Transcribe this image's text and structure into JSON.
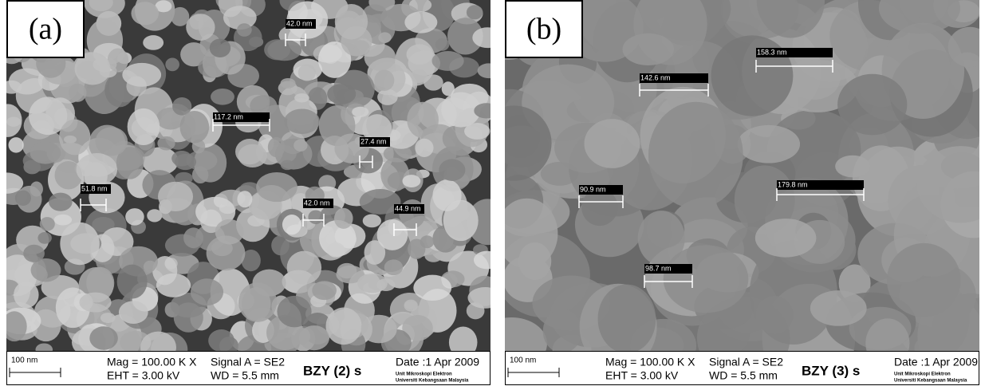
{
  "panels": [
    {
      "label": "(a)",
      "measurements": [
        "42.0 nm",
        "117.2 nm",
        "27.4 nm",
        "51.8 nm",
        "42.0 nm",
        "44.9 nm"
      ],
      "info": {
        "scale": "100 nm",
        "mag": "Mag = 100.00 K X",
        "eht": "EHT =  3.00 kV",
        "signal": "Signal A = SE2",
        "wd": "WD =  5.5 mm",
        "sample": "BZY (2) s",
        "date": "Date :1 Apr 2009",
        "unit": "Unit Mikroskopi Elektron",
        "university": "Universiti Kebangsaan Malaysia"
      }
    },
    {
      "label": "(b)",
      "measurements": [
        "158.3 nm",
        "142.6 nm",
        "90.9 nm",
        "179.8 nm",
        "98.7 nm"
      ],
      "info": {
        "scale": "100 nm",
        "mag": "Mag = 100.00 K X",
        "eht": "EHT =  3.00 kV",
        "signal": "Signal A = SE2",
        "wd": "WD =  5.5 mm",
        "sample": "BZY (3) s",
        "date": "Date :1 Apr 2009",
        "unit": "Unit Mikroskopi Elektron",
        "university": "Universiti Kebangsaan Malaysia"
      }
    }
  ]
}
